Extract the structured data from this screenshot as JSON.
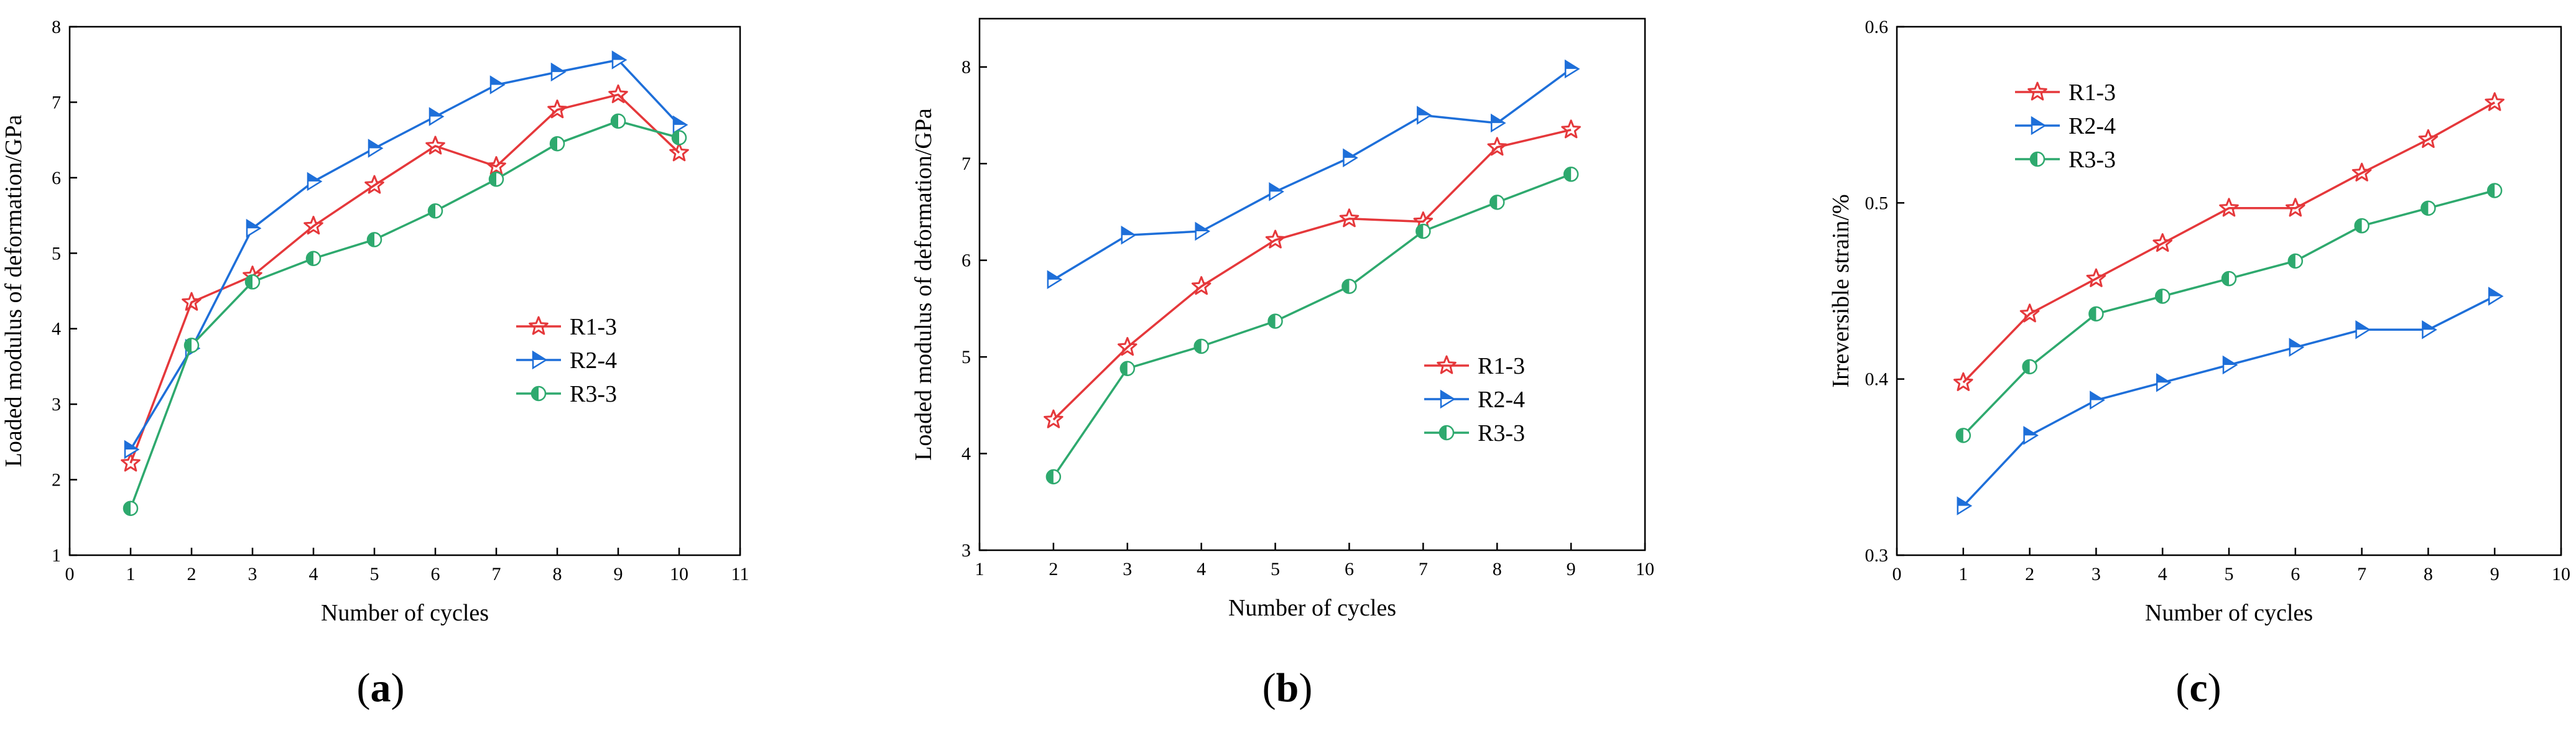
{
  "colors": {
    "R1-3": "#e5383b",
    "R2-4": "#1e6fd9",
    "R3-3": "#2ea96e"
  },
  "chart_data": [
    {
      "id": "a",
      "type": "line",
      "panel_label": "(a)",
      "panel_letter": "a",
      "xlabel": "Number of cycles",
      "ylabel": "Loaded modulus of deformation/GPa",
      "xlim": [
        0,
        11
      ],
      "ylim": [
        1,
        8
      ],
      "xticks": [
        0,
        1,
        2,
        3,
        4,
        5,
        6,
        7,
        8,
        9,
        10,
        11
      ],
      "yticks": [
        1,
        2,
        3,
        4,
        5,
        6,
        7,
        8
      ],
      "legend_position": "center-right",
      "series": [
        {
          "name": "R1-3",
          "marker": "star",
          "x": [
            1,
            2,
            3,
            4,
            5,
            6,
            7,
            8,
            9,
            10
          ],
          "values": [
            2.22,
            4.35,
            4.7,
            5.36,
            5.9,
            6.42,
            6.15,
            6.9,
            7.1,
            6.33
          ]
        },
        {
          "name": "R2-4",
          "marker": "triangle-right",
          "x": [
            1,
            2,
            3,
            4,
            5,
            6,
            7,
            8,
            9,
            10
          ],
          "values": [
            2.4,
            3.74,
            5.33,
            5.95,
            6.39,
            6.81,
            7.23,
            7.4,
            7.56,
            6.7
          ]
        },
        {
          "name": "R3-3",
          "marker": "half-circle",
          "x": [
            1,
            2,
            3,
            4,
            5,
            6,
            7,
            8,
            9,
            10
          ],
          "values": [
            1.62,
            3.78,
            4.62,
            4.93,
            5.18,
            5.56,
            5.98,
            6.45,
            6.75,
            6.53
          ]
        }
      ]
    },
    {
      "id": "b",
      "type": "line",
      "panel_label": "(b)",
      "panel_letter": "b",
      "xlabel": "Number of cycles",
      "ylabel": "Loaded modulus of deformation/GPa",
      "xlim": [
        1,
        10
      ],
      "ylim": [
        3,
        8.5
      ],
      "xticks": [
        1,
        2,
        3,
        4,
        5,
        6,
        7,
        8,
        9,
        10
      ],
      "yticks": [
        3,
        4,
        5,
        6,
        7,
        8
      ],
      "legend_position": "lower-right",
      "series": [
        {
          "name": "R1-3",
          "marker": "star",
          "x": [
            2,
            3,
            4,
            5,
            6,
            7,
            8,
            9
          ],
          "values": [
            4.35,
            5.1,
            5.73,
            6.21,
            6.43,
            6.4,
            7.17,
            7.35
          ]
        },
        {
          "name": "R2-4",
          "marker": "triangle-right",
          "x": [
            2,
            3,
            4,
            5,
            6,
            7,
            8,
            9
          ],
          "values": [
            5.8,
            6.26,
            6.3,
            6.71,
            7.06,
            7.5,
            7.42,
            7.98
          ]
        },
        {
          "name": "R3-3",
          "marker": "half-circle",
          "x": [
            2,
            3,
            4,
            5,
            6,
            7,
            8,
            9
          ],
          "values": [
            3.76,
            4.88,
            5.11,
            5.37,
            5.73,
            6.3,
            6.6,
            6.89
          ]
        }
      ]
    },
    {
      "id": "c",
      "type": "line",
      "panel_label": "(c)",
      "panel_letter": "c",
      "xlabel": "Number of cycles",
      "ylabel": "Irreversible strain/%",
      "xlim": [
        0,
        10
      ],
      "ylim": [
        0.3,
        0.6
      ],
      "xticks": [
        0,
        1,
        2,
        3,
        4,
        5,
        6,
        7,
        8,
        9,
        10
      ],
      "yticks": [
        0.3,
        0.4,
        0.5,
        0.6
      ],
      "legend_position": "top-left",
      "series": [
        {
          "name": "R1-3",
          "marker": "star",
          "x": [
            1,
            2,
            3,
            4,
            5,
            6,
            7,
            8,
            9
          ],
          "values": [
            0.398,
            0.437,
            0.457,
            0.477,
            0.497,
            0.497,
            0.517,
            0.536,
            0.557
          ]
        },
        {
          "name": "R2-4",
          "marker": "triangle-right",
          "x": [
            1,
            2,
            3,
            4,
            5,
            6,
            7,
            8,
            9
          ],
          "values": [
            0.328,
            0.368,
            0.388,
            0.398,
            0.408,
            0.418,
            0.428,
            0.428,
            0.447
          ]
        },
        {
          "name": "R3-3",
          "marker": "half-circle",
          "x": [
            1,
            2,
            3,
            4,
            5,
            6,
            7,
            8,
            9
          ],
          "values": [
            0.368,
            0.407,
            0.437,
            0.447,
            0.457,
            0.467,
            0.487,
            0.497,
            0.507
          ]
        }
      ]
    }
  ]
}
